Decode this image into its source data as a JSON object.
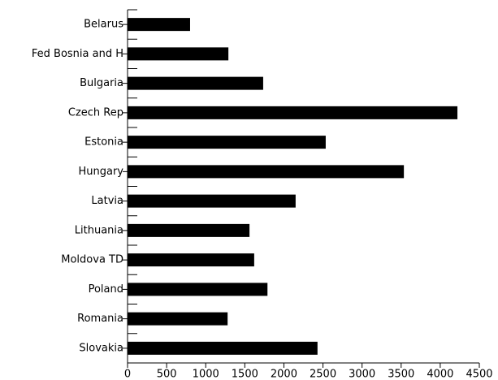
{
  "chart_data": {
    "type": "bar",
    "orientation": "horizontal",
    "categories": [
      "Belarus",
      "Fed Bosnia and H",
      "Bulgaria",
      "Czech Rep",
      "Estonia",
      "Hungary",
      "Latvia",
      "Lithuania",
      "Moldova TD",
      "Poland",
      "Romania",
      "Slovakia"
    ],
    "values": [
      800,
      1290,
      1735,
      4220,
      2535,
      3535,
      2150,
      1560,
      1620,
      1790,
      1280,
      2430
    ],
    "color": "#000000",
    "xlim": [
      0,
      4500
    ],
    "xticks": [
      0,
      500,
      1000,
      1500,
      2000,
      2500,
      3000,
      3500,
      4000,
      4500
    ],
    "grid": false
  }
}
